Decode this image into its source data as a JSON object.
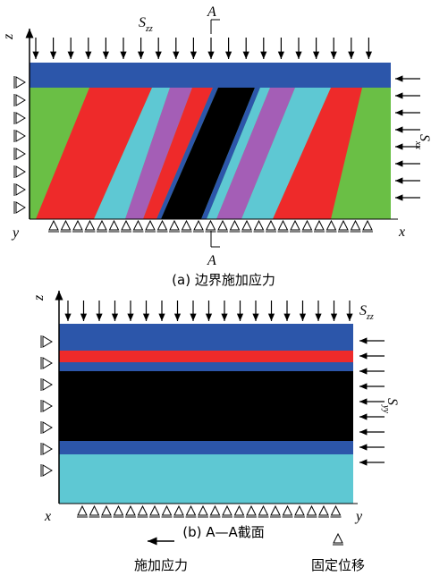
{
  "panel_a": {
    "axis_z": "z",
    "axis_y": "y",
    "axis_x": "x",
    "section_top": "A",
    "section_bottom": "A",
    "load_top": {
      "symbol": "S",
      "subscript": "zz"
    },
    "load_side": {
      "symbol": "S",
      "subscript": "xx"
    },
    "caption": "(a) 边界施加应力"
  },
  "panel_b": {
    "axis_z": "z",
    "axis_x": "x",
    "axis_y": "y",
    "load_top": {
      "symbol": "S",
      "subscript": "zz"
    },
    "load_side": {
      "symbol": "S",
      "subscript": "yy"
    },
    "caption": "(b) A—A截面"
  },
  "legend": {
    "applied_stress": "施加应力",
    "fixed_displacement": "固定位移"
  }
}
